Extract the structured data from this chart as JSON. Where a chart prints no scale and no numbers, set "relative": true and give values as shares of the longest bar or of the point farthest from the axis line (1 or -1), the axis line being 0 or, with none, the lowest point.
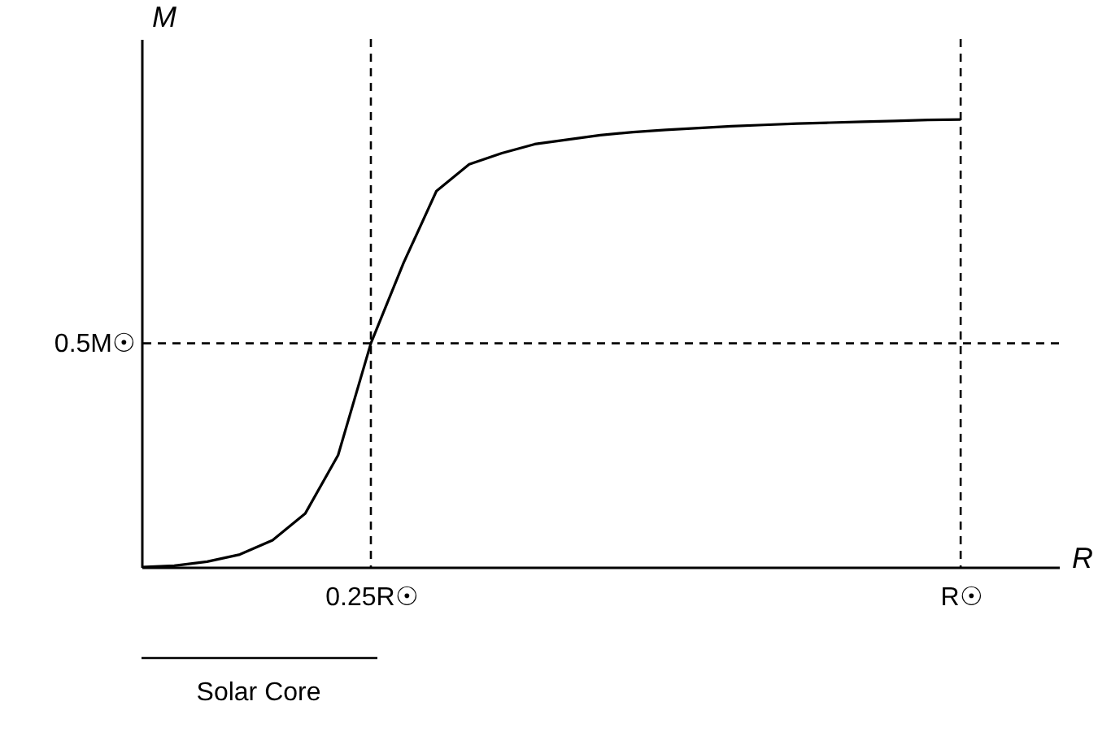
{
  "chart_data": {
    "type": "line",
    "xlabel": "R",
    "ylabel": "M",
    "relative": true,
    "categories": [
      null,
      null,
      null,
      null,
      null,
      null,
      null,
      "0.25R☉",
      null,
      null,
      null,
      null,
      null,
      null,
      null,
      null,
      null,
      null,
      null,
      null,
      null,
      null,
      null,
      null,
      null,
      "R☉",
      null,
      null,
      null
    ],
    "series": [
      {
        "color": "#000000",
        "values": [
          0,
          0.003,
          0.012,
          0.028,
          0.06,
          0.12,
          0.25,
          0.5,
          0.68,
          0.84,
          0.9,
          0.925,
          0.945,
          0.955,
          0.965,
          0.972,
          0.977,
          0.981,
          0.985,
          0.988,
          0.991,
          0.993,
          0.995,
          0.997,
          0.999,
          1.0,
          null,
          null,
          null
        ]
      }
    ],
    "ref_lines": [
      {
        "axis": "x",
        "value": "0.25R☉",
        "line_style": "dashed",
        "color": "#000000"
      },
      {
        "axis": "y",
        "value": 0.5,
        "label": "0.5M☉",
        "line_style": "dashed",
        "color": "#000000"
      },
      {
        "axis": "x",
        "value": "R☉",
        "line_style": "dashed",
        "color": "#000000"
      }
    ],
    "annotations": [
      "Solar Core"
    ],
    "grid": false,
    "marker": "none",
    "line_style": "solid"
  }
}
